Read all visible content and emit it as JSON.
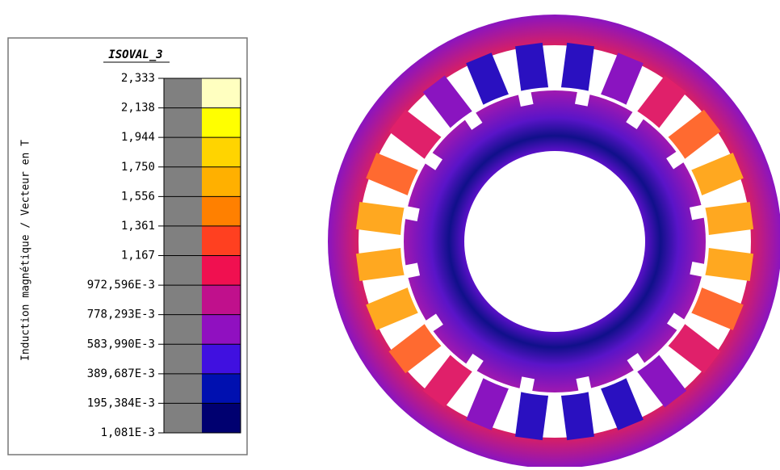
{
  "legend": {
    "title": "ISOVAL_3",
    "axis_label": "Induction magnétique / Vecteur en T",
    "labels": [
      "2,333",
      "2,138",
      "1,944",
      "1,750",
      "1,556",
      "1,361",
      "1,167",
      "972,596E-3",
      "778,293E-3",
      "583,990E-3",
      "389,687E-3",
      "195,384E-3",
      "1,081E-3"
    ],
    "colors": [
      "#ffffc0",
      "#ffff00",
      "#ffd400",
      "#ffb000",
      "#ff8000",
      "#ff4020",
      "#f01050",
      "#c0108c",
      "#9010c0",
      "#4010e0",
      "#0010b0",
      "#000070"
    ]
  }
}
